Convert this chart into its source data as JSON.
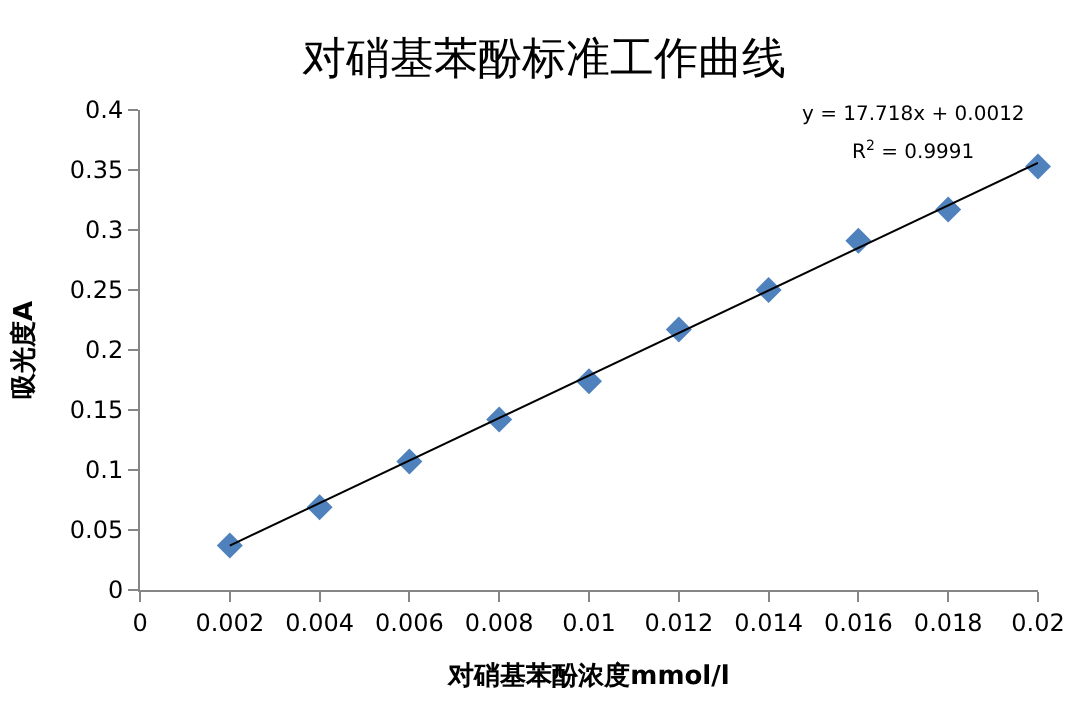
{
  "chart_data": {
    "type": "scatter",
    "title": "对硝基苯酚标准工作曲线",
    "xlabel": "对硝基苯酚浓度mmol/l",
    "ylabel": "吸光度A",
    "x": [
      0.002,
      0.004,
      0.006,
      0.008,
      0.01,
      0.012,
      0.014,
      0.016,
      0.018,
      0.02
    ],
    "series": [
      {
        "color": "#4f81bd",
        "marker": "diamond",
        "values": [
          0.037,
          0.069,
          0.107,
          0.142,
          0.174,
          0.217,
          0.25,
          0.291,
          0.317,
          0.353
        ]
      },
      {
        "type": "line",
        "color": "#000000",
        "x": [
          0.002,
          0.02
        ],
        "values": [
          0.037,
          0.356
        ],
        "line_style": "solid",
        "marker": "none"
      }
    ],
    "annotations": [
      "y = 17.718x + 0.0012",
      "R$^{2}$ = 0.9991"
    ],
    "xlim": [
      0,
      0.02
    ],
    "xticks": [
      0,
      0.002,
      0.004,
      0.006,
      0.008,
      0.01,
      0.012,
      0.014,
      0.016,
      0.018,
      0.02
    ],
    "ylim": [
      0,
      0.4
    ],
    "yticks": [
      0,
      0.05,
      0.1,
      0.15,
      0.2,
      0.25,
      0.3,
      0.35,
      0.4
    ],
    "grid": false
  }
}
